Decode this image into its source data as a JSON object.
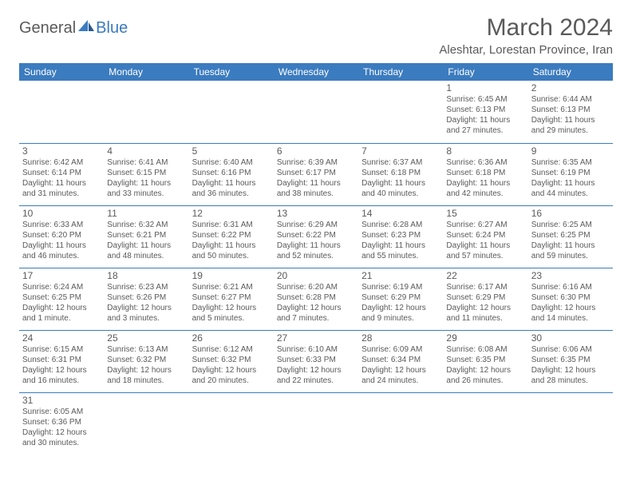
{
  "brand": {
    "general": "General",
    "blue": "Blue"
  },
  "title": "March 2024",
  "location": "Aleshtar, Lorestan Province, Iran",
  "colors": {
    "header_bg": "#3b7bbf",
    "header_text": "#ffffff",
    "text": "#5a5a5a",
    "border": "#3b7bbf",
    "background": "#ffffff"
  },
  "weekdays": [
    "Sunday",
    "Monday",
    "Tuesday",
    "Wednesday",
    "Thursday",
    "Friday",
    "Saturday"
  ],
  "weeks": [
    [
      null,
      null,
      null,
      null,
      null,
      {
        "day": "1",
        "sunrise": "Sunrise: 6:45 AM",
        "sunset": "Sunset: 6:13 PM",
        "daylight": "Daylight: 11 hours and 27 minutes."
      },
      {
        "day": "2",
        "sunrise": "Sunrise: 6:44 AM",
        "sunset": "Sunset: 6:13 PM",
        "daylight": "Daylight: 11 hours and 29 minutes."
      }
    ],
    [
      {
        "day": "3",
        "sunrise": "Sunrise: 6:42 AM",
        "sunset": "Sunset: 6:14 PM",
        "daylight": "Daylight: 11 hours and 31 minutes."
      },
      {
        "day": "4",
        "sunrise": "Sunrise: 6:41 AM",
        "sunset": "Sunset: 6:15 PM",
        "daylight": "Daylight: 11 hours and 33 minutes."
      },
      {
        "day": "5",
        "sunrise": "Sunrise: 6:40 AM",
        "sunset": "Sunset: 6:16 PM",
        "daylight": "Daylight: 11 hours and 36 minutes."
      },
      {
        "day": "6",
        "sunrise": "Sunrise: 6:39 AM",
        "sunset": "Sunset: 6:17 PM",
        "daylight": "Daylight: 11 hours and 38 minutes."
      },
      {
        "day": "7",
        "sunrise": "Sunrise: 6:37 AM",
        "sunset": "Sunset: 6:18 PM",
        "daylight": "Daylight: 11 hours and 40 minutes."
      },
      {
        "day": "8",
        "sunrise": "Sunrise: 6:36 AM",
        "sunset": "Sunset: 6:18 PM",
        "daylight": "Daylight: 11 hours and 42 minutes."
      },
      {
        "day": "9",
        "sunrise": "Sunrise: 6:35 AM",
        "sunset": "Sunset: 6:19 PM",
        "daylight": "Daylight: 11 hours and 44 minutes."
      }
    ],
    [
      {
        "day": "10",
        "sunrise": "Sunrise: 6:33 AM",
        "sunset": "Sunset: 6:20 PM",
        "daylight": "Daylight: 11 hours and 46 minutes."
      },
      {
        "day": "11",
        "sunrise": "Sunrise: 6:32 AM",
        "sunset": "Sunset: 6:21 PM",
        "daylight": "Daylight: 11 hours and 48 minutes."
      },
      {
        "day": "12",
        "sunrise": "Sunrise: 6:31 AM",
        "sunset": "Sunset: 6:22 PM",
        "daylight": "Daylight: 11 hours and 50 minutes."
      },
      {
        "day": "13",
        "sunrise": "Sunrise: 6:29 AM",
        "sunset": "Sunset: 6:22 PM",
        "daylight": "Daylight: 11 hours and 52 minutes."
      },
      {
        "day": "14",
        "sunrise": "Sunrise: 6:28 AM",
        "sunset": "Sunset: 6:23 PM",
        "daylight": "Daylight: 11 hours and 55 minutes."
      },
      {
        "day": "15",
        "sunrise": "Sunrise: 6:27 AM",
        "sunset": "Sunset: 6:24 PM",
        "daylight": "Daylight: 11 hours and 57 minutes."
      },
      {
        "day": "16",
        "sunrise": "Sunrise: 6:25 AM",
        "sunset": "Sunset: 6:25 PM",
        "daylight": "Daylight: 11 hours and 59 minutes."
      }
    ],
    [
      {
        "day": "17",
        "sunrise": "Sunrise: 6:24 AM",
        "sunset": "Sunset: 6:25 PM",
        "daylight": "Daylight: 12 hours and 1 minute."
      },
      {
        "day": "18",
        "sunrise": "Sunrise: 6:23 AM",
        "sunset": "Sunset: 6:26 PM",
        "daylight": "Daylight: 12 hours and 3 minutes."
      },
      {
        "day": "19",
        "sunrise": "Sunrise: 6:21 AM",
        "sunset": "Sunset: 6:27 PM",
        "daylight": "Daylight: 12 hours and 5 minutes."
      },
      {
        "day": "20",
        "sunrise": "Sunrise: 6:20 AM",
        "sunset": "Sunset: 6:28 PM",
        "daylight": "Daylight: 12 hours and 7 minutes."
      },
      {
        "day": "21",
        "sunrise": "Sunrise: 6:19 AM",
        "sunset": "Sunset: 6:29 PM",
        "daylight": "Daylight: 12 hours and 9 minutes."
      },
      {
        "day": "22",
        "sunrise": "Sunrise: 6:17 AM",
        "sunset": "Sunset: 6:29 PM",
        "daylight": "Daylight: 12 hours and 11 minutes."
      },
      {
        "day": "23",
        "sunrise": "Sunrise: 6:16 AM",
        "sunset": "Sunset: 6:30 PM",
        "daylight": "Daylight: 12 hours and 14 minutes."
      }
    ],
    [
      {
        "day": "24",
        "sunrise": "Sunrise: 6:15 AM",
        "sunset": "Sunset: 6:31 PM",
        "daylight": "Daylight: 12 hours and 16 minutes."
      },
      {
        "day": "25",
        "sunrise": "Sunrise: 6:13 AM",
        "sunset": "Sunset: 6:32 PM",
        "daylight": "Daylight: 12 hours and 18 minutes."
      },
      {
        "day": "26",
        "sunrise": "Sunrise: 6:12 AM",
        "sunset": "Sunset: 6:32 PM",
        "daylight": "Daylight: 12 hours and 20 minutes."
      },
      {
        "day": "27",
        "sunrise": "Sunrise: 6:10 AM",
        "sunset": "Sunset: 6:33 PM",
        "daylight": "Daylight: 12 hours and 22 minutes."
      },
      {
        "day": "28",
        "sunrise": "Sunrise: 6:09 AM",
        "sunset": "Sunset: 6:34 PM",
        "daylight": "Daylight: 12 hours and 24 minutes."
      },
      {
        "day": "29",
        "sunrise": "Sunrise: 6:08 AM",
        "sunset": "Sunset: 6:35 PM",
        "daylight": "Daylight: 12 hours and 26 minutes."
      },
      {
        "day": "30",
        "sunrise": "Sunrise: 6:06 AM",
        "sunset": "Sunset: 6:35 PM",
        "daylight": "Daylight: 12 hours and 28 minutes."
      }
    ],
    [
      {
        "day": "31",
        "sunrise": "Sunrise: 6:05 AM",
        "sunset": "Sunset: 6:36 PM",
        "daylight": "Daylight: 12 hours and 30 minutes."
      },
      null,
      null,
      null,
      null,
      null,
      null
    ]
  ]
}
